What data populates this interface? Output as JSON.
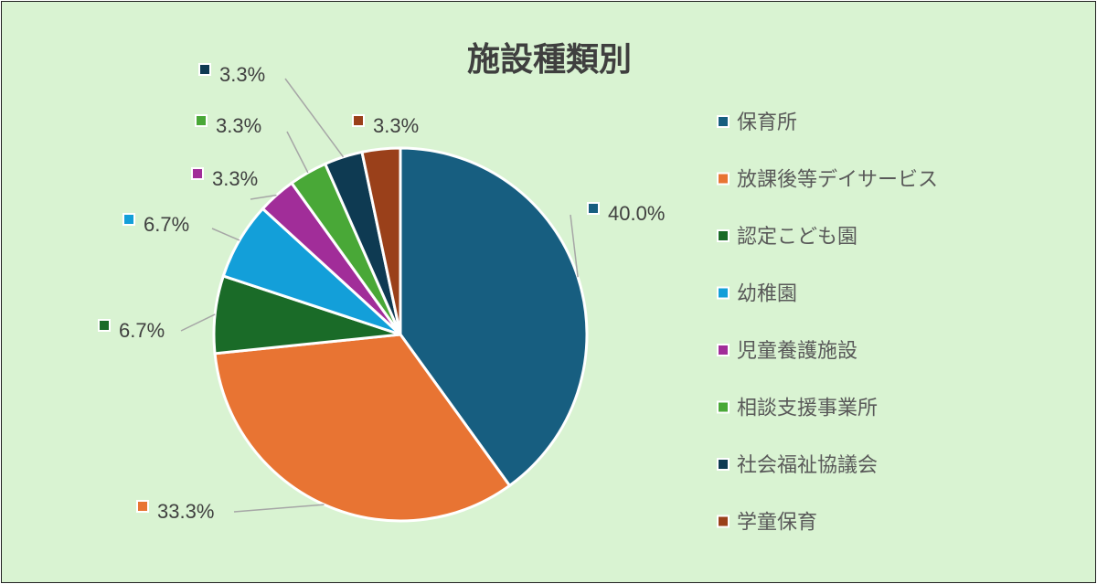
{
  "chart_data": {
    "type": "pie",
    "title": "施設種類別",
    "categories": [
      "保育所",
      "放課後等デイサービス",
      "認定こども園",
      "幼稚園",
      "児童養護施設",
      "相談支援事業所",
      "社会福祉協議会",
      "学童保育"
    ],
    "values": [
      40.0,
      33.3,
      6.7,
      6.7,
      3.3,
      3.3,
      3.3,
      3.3
    ],
    "labels": [
      "40.0%",
      "33.3%",
      "6.7%",
      "6.7%",
      "3.3%",
      "3.3%",
      "3.3%",
      "3.3%"
    ],
    "colors": [
      "#175e80",
      "#e87433",
      "#1a6b28",
      "#139fd9",
      "#a12d99",
      "#49a837",
      "#0e3a52",
      "#9a401a"
    ],
    "legend_position": "right",
    "start_angle_deg": 0,
    "direction": "clockwise"
  }
}
